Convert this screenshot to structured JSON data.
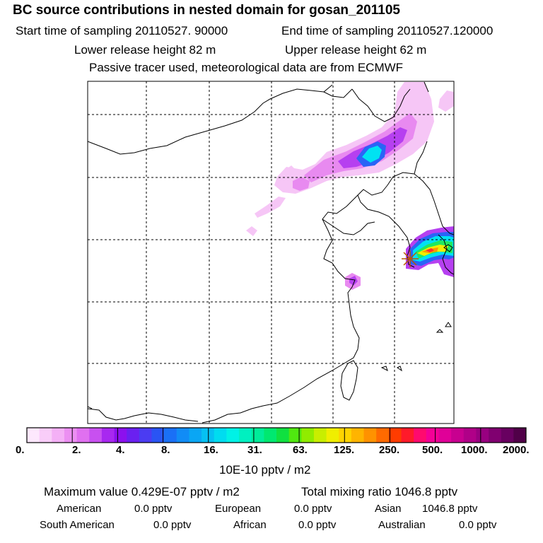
{
  "header": {
    "title": "BC  source contributions in nested domain for gosan_201105",
    "start_time": "Start time of sampling 20110527. 90000",
    "end_time": "End time of sampling 20110527.120000",
    "lower_height": "Lower release height   82 m",
    "upper_height": "Upper release height   62 m",
    "tracer_note": "Passive tracer used, meteorological data are from ECMWF"
  },
  "colorbar": {
    "colors": [
      "#fde8fd",
      "#f9cdf9",
      "#f4b0f6",
      "#ec8ff2",
      "#e070f0",
      "#c850f0",
      "#a828f0",
      "#8c10ee",
      "#6a20f0",
      "#4b3cf2",
      "#2a54f4",
      "#1a70f6",
      "#118cf6",
      "#0aa6f4",
      "#06c0f2",
      "#00dcf0",
      "#00f2e6",
      "#00f0c0",
      "#00ec9a",
      "#00e870",
      "#10e040",
      "#50e810",
      "#90ec00",
      "#c8ee00",
      "#f0ee00",
      "#ffd400",
      "#ffb400",
      "#ff9200",
      "#ff6a00",
      "#ff3c00",
      "#ff1a2a",
      "#ff0a6e",
      "#f40096",
      "#e00098",
      "#c80090",
      "#b00088",
      "#980080",
      "#800070",
      "#680060",
      "#500048"
    ],
    "tick_labels": [
      "0.",
      "2.",
      "4.",
      "8.",
      "16.",
      "31.",
      "63.",
      "125.",
      "250.",
      "500.",
      "1000.",
      "2000."
    ],
    "unit": "10E-10 pptv / m2"
  },
  "stats": {
    "max_value": "Maximum value  0.429E-07 pptv / m2",
    "total_mixing": "Total mixing ratio     1046.8 pptv",
    "american_label": "American",
    "american_value": "0.0 pptv",
    "european_label": "European",
    "european_value": "0.0 pptv",
    "asian_label": "Asian",
    "asian_value": "1046.8 pptv",
    "south_american_label": "South American",
    "south_american_value": "0.0 pptv",
    "african_label": "African",
    "african_value": "0.0 pptv",
    "australian_label": "Australian",
    "australian_value": "0.0 pptv"
  },
  "plume_colors": {
    "light": "#f6c6f6",
    "mid": "#e88af0",
    "violet": "#b640f0",
    "blue": "#2a64f6",
    "cyan": "#00e2f2",
    "green": "#20e860",
    "yellow": "#f0ee00",
    "orange": "#ff9a00",
    "red": "#ff3030"
  }
}
